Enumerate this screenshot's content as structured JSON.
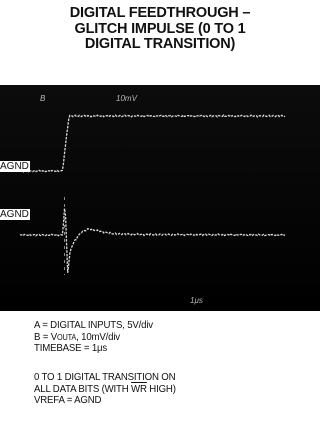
{
  "title": {
    "line1": "DIGITAL FEEDTHROUGH –",
    "line2": "GLITCH IMPULSE (0 TO 1",
    "line3": "DIGITAL TRANSITION)"
  },
  "scope": {
    "ch_a_ref": "AGND",
    "ch_b_ref": "AGND",
    "top_left_mark": "B",
    "top_center_mark": "10mV",
    "bottom_mark": "1μs"
  },
  "chart_data": {
    "type": "line",
    "title": "DIGITAL FEEDTHROUGH – GLITCH IMPULSE (0 TO 1 DIGITAL TRANSITION)",
    "time_unit": "μs",
    "timebase_per_div": 1,
    "x_range_div": [
      0,
      10
    ],
    "grid": false,
    "series": [
      {
        "name": "A",
        "description": "DIGITAL INPUTS, 5V/div",
        "volts_per_div": 5,
        "points_div": [
          [
            0,
            0
          ],
          [
            1.6,
            0
          ],
          [
            1.85,
            2.2
          ],
          [
            10,
            2.2
          ]
        ]
      },
      {
        "name": "B",
        "description": "VOUTA, 10mV/div",
        "volts_per_div": 0.01,
        "points_div": [
          [
            0,
            0
          ],
          [
            1.6,
            0
          ],
          [
            1.7,
            1.3
          ],
          [
            1.8,
            -1.5
          ],
          [
            1.9,
            -0.6
          ],
          [
            2.05,
            -0.25
          ],
          [
            2.3,
            0.1
          ],
          [
            2.6,
            0.25
          ],
          [
            3.0,
            0.15
          ],
          [
            3.5,
            0.05
          ],
          [
            4.5,
            0.02
          ],
          [
            10,
            0
          ]
        ]
      }
    ]
  },
  "legend": {
    "line_a": "A = DIGITAL INPUTS, 5V/div",
    "line_b_prefix": "B = V",
    "line_b_sub": "OUTA",
    "line_b_suffix": ", 10mV/div",
    "line_t": "TIMEBASE = 1μs"
  },
  "notes": {
    "line1": "0 TO 1 DIGITAL TRANSITION ON",
    "line2_prefix": "ALL DATA BITS (WITH ",
    "line2_overline": "WR",
    "line2_suffix": " HIGH)",
    "line3": "VREFA = AGND"
  }
}
